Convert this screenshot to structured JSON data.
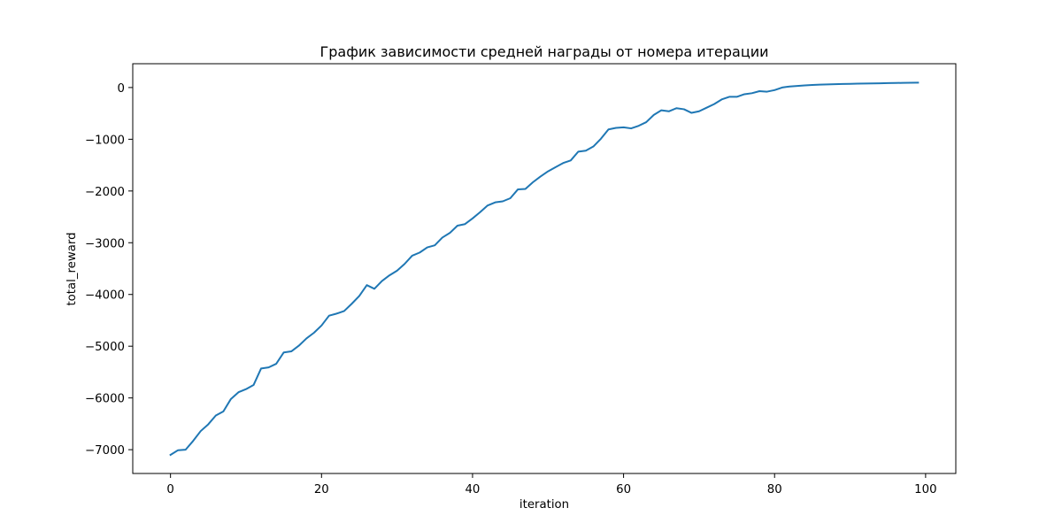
{
  "chart_data": {
    "type": "line",
    "title": "График зависимости средней награды от номера итерации",
    "xlabel": "iteration",
    "ylabel": "total_reward",
    "xlim": [
      -5,
      104
    ],
    "ylim": [
      -7460,
      460
    ],
    "xticks": [
      0,
      20,
      40,
      60,
      80,
      100
    ],
    "yticks": [
      -7000,
      -6000,
      -5000,
      -4000,
      -3000,
      -2000,
      -1000,
      0
    ],
    "ytick_labels": [
      "−7000",
      "−6000",
      "−5000",
      "−4000",
      "−3000",
      "−2000",
      "−1000",
      "0"
    ],
    "grid": false,
    "legend": "none",
    "line_color": "#1f77b4",
    "series": [
      {
        "x": [
          0,
          1,
          2,
          3,
          4,
          5,
          6,
          7,
          8,
          9,
          10,
          11,
          12,
          13,
          14,
          15,
          16,
          17,
          18,
          19,
          20,
          21,
          22,
          23,
          24,
          25,
          26,
          27,
          28,
          29,
          30,
          31,
          32,
          33,
          34,
          35,
          36,
          37,
          38,
          39,
          40,
          41,
          42,
          43,
          44,
          45,
          46,
          47,
          48,
          49,
          50,
          51,
          52,
          53,
          54,
          55,
          56,
          57,
          58,
          59,
          60,
          61,
          62,
          63,
          64,
          65,
          66,
          67,
          68,
          69,
          70,
          71,
          72,
          73,
          74,
          75,
          76,
          77,
          78,
          79,
          80,
          81,
          82,
          83,
          84,
          85,
          86,
          87,
          88,
          89,
          90,
          91,
          92,
          93,
          94,
          95,
          96,
          97,
          98,
          99
        ],
        "values": [
          -7100,
          -7010,
          -7000,
          -6830,
          -6640,
          -6510,
          -6340,
          -6260,
          -6020,
          -5890,
          -5830,
          -5750,
          -5430,
          -5410,
          -5340,
          -5120,
          -5100,
          -4990,
          -4850,
          -4740,
          -4600,
          -4410,
          -4370,
          -4320,
          -4180,
          -4030,
          -3820,
          -3890,
          -3740,
          -3630,
          -3540,
          -3410,
          -3250,
          -3190,
          -3090,
          -3050,
          -2900,
          -2810,
          -2670,
          -2640,
          -2530,
          -2410,
          -2280,
          -2220,
          -2200,
          -2140,
          -1970,
          -1960,
          -1830,
          -1720,
          -1620,
          -1540,
          -1460,
          -1410,
          -1240,
          -1220,
          -1140,
          -990,
          -810,
          -780,
          -770,
          -790,
          -740,
          -670,
          -530,
          -440,
          -460,
          -400,
          -420,
          -490,
          -460,
          -390,
          -320,
          -230,
          -180,
          -180,
          -130,
          -110,
          -70,
          -80,
          -50,
          0,
          20,
          30,
          40,
          50,
          55,
          60,
          65,
          68,
          70,
          75,
          78,
          80,
          82,
          85,
          88,
          90,
          93,
          95
        ]
      }
    ]
  }
}
